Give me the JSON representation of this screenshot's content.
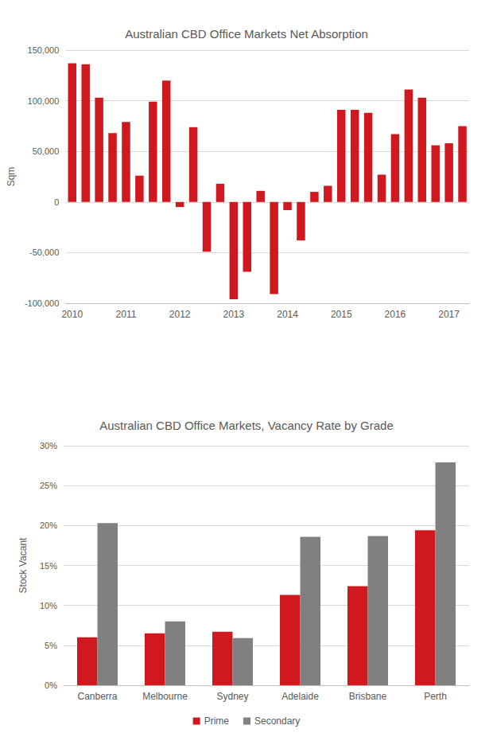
{
  "chart_data": [
    {
      "type": "bar",
      "title": "Australian CBD Office Markets Net Absorption",
      "y_label": "Sqm",
      "categories": [
        "2010",
        null,
        null,
        null,
        "2011",
        null,
        null,
        null,
        "2012",
        null,
        null,
        null,
        "2013",
        null,
        null,
        null,
        "2014",
        null,
        null,
        null,
        "2015",
        null,
        null,
        null,
        "2016",
        null,
        null,
        null,
        "2017",
        null
      ],
      "values": [
        137000,
        136000,
        103000,
        68000,
        79000,
        26000,
        99000,
        120000,
        -5000,
        74000,
        -49000,
        18000,
        -96000,
        -69000,
        11000,
        -91000,
        -8000,
        -38000,
        10000,
        16000,
        91000,
        91000,
        88000,
        27000,
        67000,
        111000,
        103000,
        56000,
        58000,
        75000
      ],
      "color": "#d0191f",
      "ylim": [
        -100000,
        150000
      ],
      "yticks": [
        {
          "value": -100000,
          "label": "-100,000"
        },
        {
          "value": -50000,
          "label": "-50,000"
        },
        0,
        {
          "value": 50000,
          "label": "50,000"
        },
        {
          "value": 100000,
          "label": "100,000"
        },
        {
          "value": 150000,
          "label": "150,000"
        }
      ],
      "grid": true
    },
    {
      "type": "bar",
      "title": "Australian CBD Office Markets, Vacancy Rate by Grade",
      "y_label": "Stock Vacant",
      "categories": [
        "Canberra",
        "Melbourne",
        "Sydney",
        "Adelaide",
        "Brisbane",
        "Perth"
      ],
      "series": [
        {
          "name": "Prime",
          "color": "#d0191f",
          "values": [
            6.0,
            6.5,
            6.7,
            11.3,
            12.4,
            19.4
          ]
        },
        {
          "name": "Secondary",
          "color": "#808080",
          "values": [
            20.3,
            8.0,
            5.9,
            18.6,
            18.7,
            27.9
          ]
        }
      ],
      "ylim": [
        0,
        30
      ],
      "yticks": [
        {
          "value": 0,
          "label": "0%"
        },
        {
          "value": 5,
          "label": "5%"
        },
        {
          "value": 10,
          "label": "10%"
        },
        {
          "value": 15,
          "label": "15%"
        },
        {
          "value": 20,
          "label": "20%"
        },
        {
          "value": 25,
          "label": "25%"
        },
        {
          "value": 30,
          "label": "30%"
        }
      ],
      "grid": true,
      "legend": "bottom"
    }
  ]
}
